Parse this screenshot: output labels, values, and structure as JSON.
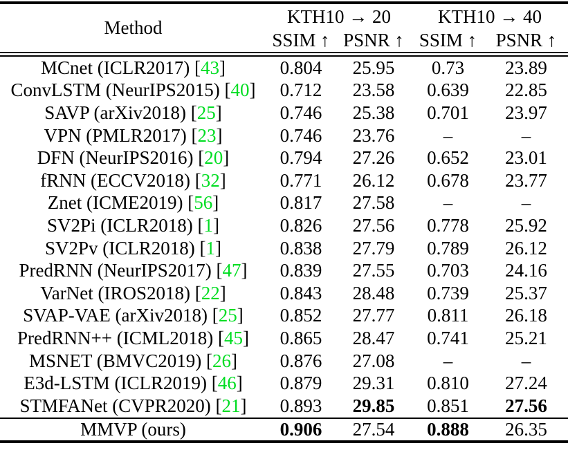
{
  "table": {
    "header": {
      "method_label": "Method",
      "groups": [
        {
          "label": "KTH10 → 20"
        },
        {
          "label": "KTH10 → 40"
        }
      ],
      "subheaders": [
        "SSIM ↑",
        "PSNR ↑",
        "SSIM ↑",
        "PSNR ↑"
      ]
    },
    "citation_color": "#00dd22",
    "missing_value": "–",
    "rows": [
      {
        "method": "MCnet (ICLR2017)",
        "cite": "43",
        "values": [
          "0.804",
          "25.95",
          "0.73",
          "23.89"
        ],
        "bold": []
      },
      {
        "method": "ConvLSTM (NeurIPS2015)",
        "cite": "40",
        "values": [
          "0.712",
          "23.58",
          "0.639",
          "22.85"
        ],
        "bold": []
      },
      {
        "method": "SAVP (arXiv2018)",
        "cite": "25",
        "values": [
          "0.746",
          "25.38",
          "0.701",
          "23.97"
        ],
        "bold": []
      },
      {
        "method": "VPN (PMLR2017)",
        "cite": "23",
        "values": [
          "0.746",
          "23.76",
          "–",
          "–"
        ],
        "bold": []
      },
      {
        "method": "DFN (NeurIPS2016)",
        "cite": "20",
        "values": [
          "0.794",
          "27.26",
          "0.652",
          "23.01"
        ],
        "bold": []
      },
      {
        "method": "fRNN (ECCV2018)",
        "cite": "32",
        "values": [
          "0.771",
          "26.12",
          "0.678",
          "23.77"
        ],
        "bold": []
      },
      {
        "method": "Znet (ICME2019)",
        "cite": "56",
        "values": [
          "0.817",
          "27.58",
          "–",
          "–"
        ],
        "bold": []
      },
      {
        "method": "SV2Pi (ICLR2018)",
        "cite": "1",
        "values": [
          "0.826",
          "27.56",
          "0.778",
          "25.92"
        ],
        "bold": []
      },
      {
        "method": "SV2Pv (ICLR2018)",
        "cite": "1",
        "values": [
          "0.838",
          "27.79",
          "0.789",
          "26.12"
        ],
        "bold": []
      },
      {
        "method": "PredRNN (NeurIPS2017)",
        "cite": "47",
        "values": [
          "0.839",
          "27.55",
          "0.703",
          "24.16"
        ],
        "bold": []
      },
      {
        "method": "VarNet (IROS2018)",
        "cite": "22",
        "values": [
          "0.843",
          "28.48",
          "0.739",
          "25.37"
        ],
        "bold": []
      },
      {
        "method": "SVAP-VAE (arXiv2018)",
        "cite": "25",
        "values": [
          "0.852",
          "27.77",
          "0.811",
          "26.18"
        ],
        "bold": []
      },
      {
        "method": "PredRNN++ (ICML2018)",
        "cite": "45",
        "values": [
          "0.865",
          "28.47",
          "0.741",
          "25.21"
        ],
        "bold": []
      },
      {
        "method": "MSNET (BMVC2019)",
        "cite": "26",
        "values": [
          "0.876",
          "27.08",
          "–",
          "–"
        ],
        "bold": []
      },
      {
        "method": "E3d-LSTM (ICLR2019)",
        "cite": "46",
        "values": [
          "0.879",
          "29.31",
          "0.810",
          "27.24"
        ],
        "bold": []
      },
      {
        "method": "STMFANet (CVPR2020)",
        "cite": "21",
        "values": [
          "0.893",
          "29.85",
          "0.851",
          "27.56"
        ],
        "bold": [
          1,
          3
        ]
      },
      {
        "method": "MMVP (ours)",
        "cite": null,
        "values": [
          "0.906",
          "27.54",
          "0.888",
          "26.35"
        ],
        "bold": [
          0,
          2
        ],
        "is_ours": true
      }
    ]
  }
}
